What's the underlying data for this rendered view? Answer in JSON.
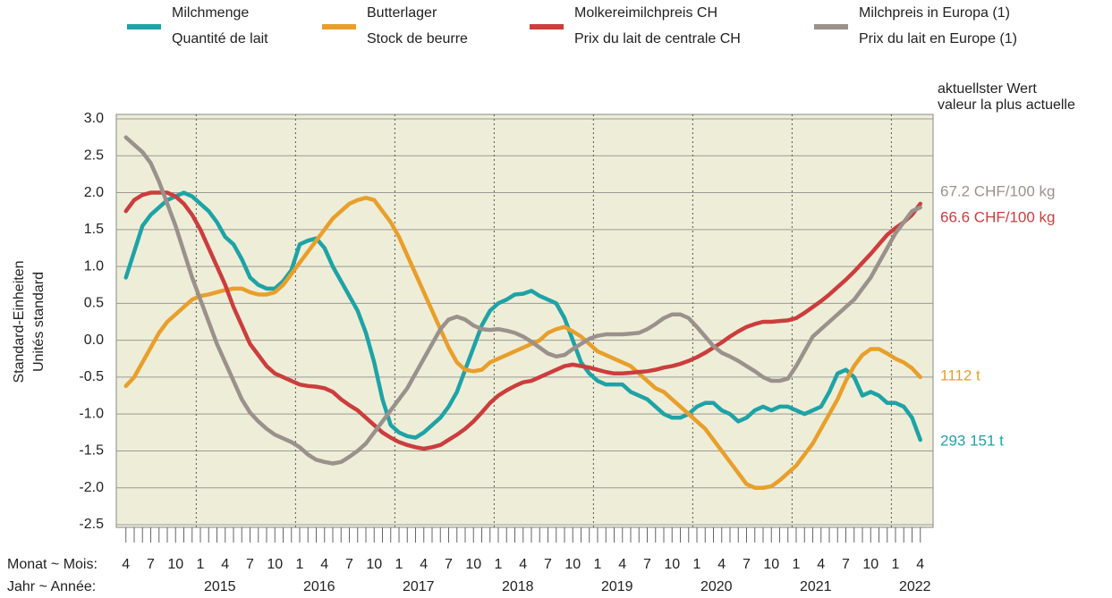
{
  "chart_data": {
    "type": "line",
    "ylabel": [
      "Standard-Einheiten",
      "Unités standard"
    ],
    "right_header": [
      "aktuellster Wert",
      "valeur la plus actuelle"
    ],
    "x_month_caption": "Monat ~ Mois:",
    "x_year_caption": "Jahr ~ Année:",
    "categories": [
      "4",
      null,
      null,
      "7",
      null,
      null,
      "10",
      null,
      null,
      "1",
      null,
      null,
      "4",
      null,
      null,
      "7",
      null,
      null,
      "10",
      null,
      null,
      "1",
      null,
      null,
      "4",
      null,
      null,
      "7",
      null,
      null,
      "10",
      null,
      null,
      "1",
      null,
      null,
      "4",
      null,
      null,
      "7",
      null,
      null,
      "10",
      null,
      null,
      "1",
      null,
      null,
      "4",
      null,
      null,
      "7",
      null,
      null,
      "10",
      null,
      null,
      "1",
      null,
      null,
      "4",
      null,
      null,
      "7",
      null,
      null,
      "10",
      null,
      null,
      "1",
      null,
      null,
      "4",
      null,
      null,
      "7",
      null,
      null,
      "10",
      null,
      null,
      "1",
      null,
      null,
      "4",
      null,
      null,
      "7",
      null,
      null,
      "10",
      null,
      null,
      "1",
      null,
      null,
      "4"
    ],
    "years": [
      "2015",
      "2016",
      "2017",
      "2018",
      "2019",
      "2020",
      "2021",
      "2022"
    ],
    "ylim": [
      -2.5,
      3.0
    ],
    "yticks": [
      {
        "value": 3.0,
        "label": "3.0"
      },
      {
        "value": 2.5,
        "label": "2.5"
      },
      {
        "value": 2.0,
        "label": "2.0"
      },
      {
        "value": 1.5,
        "label": "1.5"
      },
      {
        "value": 1.0,
        "label": "1.0"
      },
      {
        "value": 0.5,
        "label": "0.5"
      },
      {
        "value": 0,
        "label": "0.0"
      },
      {
        "value": -0.5,
        "label": "-0.5"
      },
      {
        "value": -1.0,
        "label": "-1.0"
      },
      {
        "value": -1.5,
        "label": "-1.5"
      },
      {
        "value": -2.0,
        "label": "-2.0"
      },
      {
        "value": -2.5,
        "label": "-2.5"
      }
    ],
    "grid": true,
    "series": [
      {
        "name": [
          "Milchmenge",
          "Quantité de lait"
        ],
        "color": "#1ea3a6",
        "last_value_label": "293 151 t",
        "values": [
          0.85,
          1.2,
          1.55,
          1.7,
          1.8,
          1.9,
          1.95,
          2.0,
          1.95,
          1.85,
          1.75,
          1.6,
          1.4,
          1.3,
          1.1,
          0.85,
          0.75,
          0.7,
          0.7,
          0.8,
          0.95,
          1.3,
          1.35,
          1.38,
          1.25,
          1.0,
          0.8,
          0.6,
          0.4,
          0.1,
          -0.3,
          -0.8,
          -1.15,
          -1.25,
          -1.3,
          -1.32,
          -1.25,
          -1.15,
          -1.05,
          -0.9,
          -0.7,
          -0.4,
          -0.1,
          0.2,
          0.4,
          0.5,
          0.55,
          0.62,
          0.63,
          0.67,
          0.6,
          0.55,
          0.5,
          0.3,
          0.0,
          -0.3,
          -0.45,
          -0.55,
          -0.6,
          -0.6,
          -0.6,
          -0.7,
          -0.75,
          -0.8,
          -0.9,
          -1.0,
          -1.05,
          -1.05,
          -1.0,
          -0.9,
          -0.85,
          -0.85,
          -0.95,
          -1.0,
          -1.1,
          -1.05,
          -0.95,
          -0.9,
          -0.95,
          -0.9,
          -0.9,
          -0.95,
          -1.0,
          -0.95,
          -0.9,
          -0.7,
          -0.45,
          -0.4,
          -0.5,
          -0.75,
          -0.7,
          -0.75,
          -0.85,
          -0.85,
          -0.9,
          -1.05,
          -1.35
        ]
      },
      {
        "name": [
          "Butterlager",
          "Stock de beurre"
        ],
        "color": "#e89f2b",
        "last_value_label": "1112 t",
        "values": [
          -0.62,
          -0.5,
          -0.3,
          -0.1,
          0.1,
          0.25,
          0.35,
          0.45,
          0.55,
          0.6,
          0.62,
          0.65,
          0.68,
          0.7,
          0.7,
          0.65,
          0.62,
          0.62,
          0.65,
          0.75,
          0.9,
          1.05,
          1.2,
          1.35,
          1.5,
          1.65,
          1.75,
          1.85,
          1.9,
          1.93,
          1.9,
          1.75,
          1.6,
          1.4,
          1.15,
          0.9,
          0.65,
          0.4,
          0.15,
          -0.1,
          -0.3,
          -0.4,
          -0.42,
          -0.4,
          -0.3,
          -0.25,
          -0.2,
          -0.15,
          -0.1,
          -0.05,
          0.0,
          0.1,
          0.15,
          0.18,
          0.12,
          0.05,
          -0.05,
          -0.15,
          -0.2,
          -0.25,
          -0.3,
          -0.35,
          -0.45,
          -0.55,
          -0.65,
          -0.7,
          -0.8,
          -0.9,
          -1.0,
          -1.1,
          -1.2,
          -1.35,
          -1.5,
          -1.65,
          -1.8,
          -1.95,
          -2.0,
          -2.0,
          -1.98,
          -1.9,
          -1.8,
          -1.7,
          -1.55,
          -1.4,
          -1.2,
          -1.0,
          -0.8,
          -0.55,
          -0.35,
          -0.2,
          -0.12,
          -0.12,
          -0.18,
          -0.25,
          -0.3,
          -0.38,
          -0.5
        ]
      },
      {
        "name": [
          "Molkereimilchpreis CH",
          "Prix du lait de centrale CH"
        ],
        "color": "#cc3d3d",
        "last_value_label": "66.6 CHF/100 kg",
        "values": [
          1.75,
          1.9,
          1.97,
          2.0,
          2.0,
          2.0,
          1.95,
          1.85,
          1.7,
          1.5,
          1.25,
          1.0,
          0.75,
          0.45,
          0.2,
          -0.05,
          -0.2,
          -0.35,
          -0.45,
          -0.5,
          -0.55,
          -0.6,
          -0.62,
          -0.63,
          -0.65,
          -0.7,
          -0.8,
          -0.88,
          -0.95,
          -1.05,
          -1.15,
          -1.25,
          -1.32,
          -1.38,
          -1.42,
          -1.45,
          -1.47,
          -1.45,
          -1.42,
          -1.35,
          -1.28,
          -1.2,
          -1.1,
          -0.98,
          -0.85,
          -0.75,
          -0.68,
          -0.62,
          -0.57,
          -0.55,
          -0.5,
          -0.45,
          -0.4,
          -0.35,
          -0.33,
          -0.35,
          -0.37,
          -0.4,
          -0.43,
          -0.45,
          -0.45,
          -0.44,
          -0.43,
          -0.42,
          -0.4,
          -0.37,
          -0.35,
          -0.32,
          -0.28,
          -0.23,
          -0.17,
          -0.1,
          -0.03,
          0.05,
          0.12,
          0.18,
          0.22,
          0.25,
          0.25,
          0.26,
          0.27,
          0.3,
          0.37,
          0.45,
          0.53,
          0.62,
          0.72,
          0.82,
          0.93,
          1.05,
          1.17,
          1.3,
          1.43,
          1.52,
          1.6,
          1.7,
          1.85
        ]
      },
      {
        "name": [
          "Milchpreis in Europa (1)",
          "Prix du lait en Europe (1)"
        ],
        "color": "#9b918c",
        "last_value_label": "67.2 CHF/100 kg",
        "values": [
          2.75,
          2.65,
          2.55,
          2.4,
          2.15,
          1.85,
          1.55,
          1.2,
          0.85,
          0.55,
          0.25,
          -0.05,
          -0.3,
          -0.55,
          -0.8,
          -0.98,
          -1.1,
          -1.2,
          -1.28,
          -1.33,
          -1.38,
          -1.45,
          -1.55,
          -1.62,
          -1.65,
          -1.67,
          -1.65,
          -1.58,
          -1.5,
          -1.4,
          -1.25,
          -1.1,
          -0.95,
          -0.8,
          -0.65,
          -0.45,
          -0.25,
          -0.05,
          0.15,
          0.28,
          0.32,
          0.28,
          0.2,
          0.15,
          0.14,
          0.15,
          0.13,
          0.1,
          0.05,
          -0.02,
          -0.1,
          -0.18,
          -0.22,
          -0.2,
          -0.12,
          -0.05,
          0.02,
          0.06,
          0.08,
          0.08,
          0.08,
          0.09,
          0.1,
          0.15,
          0.22,
          0.3,
          0.35,
          0.35,
          0.3,
          0.18,
          0.05,
          -0.08,
          -0.17,
          -0.22,
          -0.28,
          -0.35,
          -0.42,
          -0.5,
          -0.55,
          -0.55,
          -0.52,
          -0.35,
          -0.15,
          0.05,
          0.15,
          0.25,
          0.35,
          0.45,
          0.55,
          0.7,
          0.85,
          1.05,
          1.25,
          1.45,
          1.6,
          1.75,
          1.8
        ]
      }
    ]
  }
}
